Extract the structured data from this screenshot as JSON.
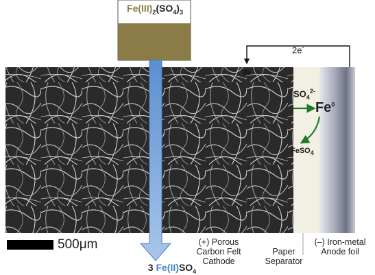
{
  "reagent": {
    "prefix": "Fe(III)",
    "sub1": "2",
    "mid": "(SO",
    "sub2": "4",
    "suffix": ")",
    "sub3": "3"
  },
  "product": {
    "coef": "3 ",
    "fe": "Fe(II)",
    "so": "SO",
    "sub": "4"
  },
  "circuit": {
    "electron_top": "2e",
    "electron_top_sup": "-",
    "electron_cathode": "2e",
    "electron_cathode_sup": "-"
  },
  "ions": {
    "sulfate": "SO",
    "sulfate_sub": "4",
    "sulfate_sup": "2-",
    "iron": "Fe",
    "iron_sup": "0",
    "ferrous": "FeSO",
    "ferrous_sub": "4"
  },
  "scale_bar": {
    "label": "500μm"
  },
  "captions": {
    "cathode": [
      "(+) Porous",
      "Carbon Felt",
      "Cathode"
    ],
    "separator": [
      "Paper",
      "Separator"
    ],
    "anode": [
      "(–) Iron-metal",
      "Anode foil"
    ]
  },
  "colors": {
    "solution": "#8a7b47",
    "arrow": "#7aa3d6",
    "reaction_arrow": "#1d7a2a"
  }
}
